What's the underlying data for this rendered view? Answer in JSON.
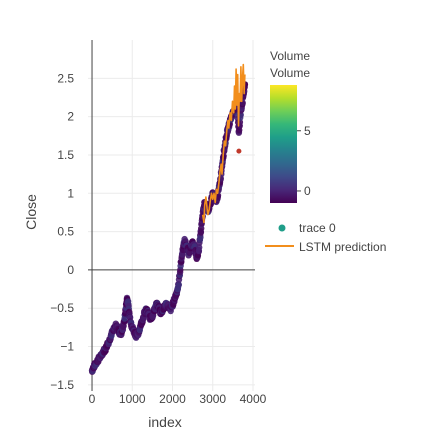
{
  "chart_data": {
    "type": "scatter",
    "xlabel": "index",
    "ylabel": "Close",
    "xlim": [
      -100,
      4050
    ],
    "ylim": [
      -1.58,
      3.0
    ],
    "x_ticks": [
      0,
      1000,
      2000,
      3000,
      4000
    ],
    "x_tick_labels": [
      "0",
      "1000",
      "2000",
      "3000",
      "4000"
    ],
    "y_ticks": [
      -1.5,
      -1,
      -0.5,
      0,
      0.5,
      1,
      1.5,
      2,
      2.5
    ],
    "y_tick_labels": [
      "−1.5",
      "−1",
      "−0.5",
      "0",
      "0.5",
      "1",
      "1.5",
      "2",
      "2.5"
    ],
    "grid": true,
    "zero_line": true,
    "series": [
      {
        "name": "trace 0",
        "mode": "markers",
        "color_by": "Volume",
        "points": [
          [
            0,
            -1.31
          ],
          [
            40,
            -1.27
          ],
          [
            80,
            -1.23
          ],
          [
            130,
            -1.19
          ],
          [
            180,
            -1.15
          ],
          [
            230,
            -1.12
          ],
          [
            280,
            -1.06
          ],
          [
            330,
            -1.04
          ],
          [
            380,
            -0.97
          ],
          [
            430,
            -0.92
          ],
          [
            480,
            -0.84
          ],
          [
            520,
            -0.8
          ],
          [
            560,
            -0.76
          ],
          [
            600,
            -0.72
          ],
          [
            640,
            -0.77
          ],
          [
            680,
            -0.82
          ],
          [
            720,
            -0.83
          ],
          [
            760,
            -0.77
          ],
          [
            800,
            -0.67
          ],
          [
            840,
            -0.5
          ],
          [
            870,
            -0.37
          ],
          [
            900,
            -0.45
          ],
          [
            940,
            -0.62
          ],
          [
            980,
            -0.72
          ],
          [
            1020,
            -0.78
          ],
          [
            1060,
            -0.82
          ],
          [
            1100,
            -0.86
          ],
          [
            1150,
            -0.83
          ],
          [
            1200,
            -0.73
          ],
          [
            1250,
            -0.66
          ],
          [
            1300,
            -0.57
          ],
          [
            1350,
            -0.52
          ],
          [
            1400,
            -0.57
          ],
          [
            1450,
            -0.64
          ],
          [
            1500,
            -0.6
          ],
          [
            1550,
            -0.52
          ],
          [
            1600,
            -0.45
          ],
          [
            1650,
            -0.48
          ],
          [
            1700,
            -0.56
          ],
          [
            1750,
            -0.53
          ],
          [
            1800,
            -0.48
          ],
          [
            1850,
            -0.44
          ],
          [
            1900,
            -0.48
          ],
          [
            1950,
            -0.52
          ],
          [
            2000,
            -0.46
          ],
          [
            2050,
            -0.38
          ],
          [
            2100,
            -0.3
          ],
          [
            2150,
            -0.2
          ],
          [
            2200,
            0.05
          ],
          [
            2250,
            0.25
          ],
          [
            2300,
            0.38
          ],
          [
            2350,
            0.32
          ],
          [
            2400,
            0.22
          ],
          [
            2450,
            0.28
          ],
          [
            2500,
            0.35
          ],
          [
            2550,
            0.3
          ],
          [
            2600,
            0.15
          ],
          [
            2650,
            0.25
          ],
          [
            2700,
            0.48
          ],
          [
            2750,
            0.72
          ],
          [
            2800,
            0.88
          ],
          [
            2850,
            0.82
          ],
          [
            2900,
            0.76
          ],
          [
            2950,
            0.88
          ],
          [
            3000,
            1.0
          ],
          [
            3050,
            0.95
          ],
          [
            3100,
            0.9
          ],
          [
            3150,
            1.05
          ],
          [
            3200,
            1.22
          ],
          [
            3250,
            1.45
          ],
          [
            3300,
            1.62
          ],
          [
            3350,
            1.78
          ],
          [
            3400,
            1.88
          ],
          [
            3450,
            1.98
          ],
          [
            3500,
            2.05
          ],
          [
            3550,
            2.12
          ],
          [
            3600,
            2.18
          ],
          [
            3650,
            1.78
          ],
          [
            3700,
            2.08
          ],
          [
            3750,
            2.22
          ],
          [
            3800,
            2.42
          ]
        ]
      },
      {
        "name": "LSTM prediction",
        "mode": "lines",
        "color": "#f28e1c",
        "x_start": 2750,
        "points": [
          [
            2750,
            0.72
          ],
          [
            2780,
            0.62
          ],
          [
            2800,
            0.85
          ],
          [
            2830,
            0.95
          ],
          [
            2860,
            0.8
          ],
          [
            2880,
            0.72
          ],
          [
            2910,
            0.78
          ],
          [
            2940,
            0.9
          ],
          [
            2970,
            1.0
          ],
          [
            3000,
            0.92
          ],
          [
            3030,
            1.0
          ],
          [
            3060,
            0.88
          ],
          [
            3090,
            1.05
          ],
          [
            3120,
            1.0
          ],
          [
            3150,
            1.12
          ],
          [
            3180,
            1.28
          ],
          [
            3210,
            1.38
          ],
          [
            3230,
            1.25
          ],
          [
            3260,
            1.5
          ],
          [
            3290,
            1.68
          ],
          [
            3320,
            1.62
          ],
          [
            3350,
            1.82
          ],
          [
            3380,
            1.95
          ],
          [
            3400,
            1.85
          ],
          [
            3430,
            2.05
          ],
          [
            3460,
            1.95
          ],
          [
            3490,
            2.2
          ],
          [
            3520,
            2.05
          ],
          [
            3540,
            2.4
          ],
          [
            3560,
            2.1
          ],
          [
            3580,
            2.62
          ],
          [
            3600,
            2.15
          ],
          [
            3620,
            2.55
          ],
          [
            3640,
            1.88
          ],
          [
            3660,
            2.3
          ],
          [
            3680,
            2.2
          ],
          [
            3700,
            2.65
          ],
          [
            3720,
            2.2
          ],
          [
            3740,
            2.5
          ],
          [
            3760,
            2.68
          ],
          [
            3780,
            2.3
          ],
          [
            3800,
            2.55
          ]
        ]
      }
    ],
    "colorbar": {
      "title_lines": [
        "Volume",
        "Volume"
      ],
      "tick_labels": [
        "0",
        "5"
      ],
      "tick_values": [
        0,
        5
      ],
      "range": [
        -1,
        8.8
      ],
      "colorscale": [
        "#440154",
        "#482878",
        "#3e4a89",
        "#31688e",
        "#26828e",
        "#1f9e89",
        "#35b779",
        "#6ece58",
        "#b5de2b",
        "#fde725"
      ]
    },
    "legend": {
      "placement": "right",
      "entries": [
        "trace 0",
        "LSTM prediction"
      ],
      "marker_color": "#1f9e89",
      "line_color": "#f28e1c"
    }
  }
}
